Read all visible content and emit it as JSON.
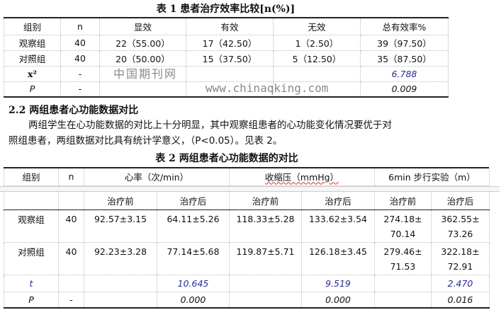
{
  "table1": {
    "title": "表 1 患者治疗效率比较[n(%)]",
    "headers": [
      "组别",
      "n",
      "显效",
      "有效",
      "无效",
      "总有效率%"
    ],
    "rows": [
      [
        "观察组",
        "40",
        "22（55.00）",
        "17（42.50）",
        "1（2.50）",
        "39（97.50）"
      ],
      [
        "对照组",
        "40",
        "20（50.00）",
        "15（37.50）",
        "5（12.50）",
        "35（87.50）"
      ]
    ],
    "chi_label": "x²",
    "chi_n": "-",
    "chi_value": "6.788",
    "p_label": "P",
    "p_n": "-",
    "p_value": "0.009"
  },
  "section": {
    "heading": "2.2 两组患者心功能数据对比",
    "para_line1": "两组学生在心功能数据的对比上十分明显，其中观察组患者的心功能变化情况要优于对",
    "para_line2": "照组患者，两组数据对比具有统计学意义，（P<0.05）。见表 2。"
  },
  "table2": {
    "title": "表 2 两组患者心功能数据的对比",
    "headers": [
      "组别",
      "n",
      "心率（次/min）",
      "收缩压（mmHg）",
      "6min 步行实验（m）"
    ],
    "subheaders": [
      "治疗前",
      "治疗后",
      "治疗前",
      "治疗后",
      "治疗前",
      "治疗后"
    ],
    "rows": [
      {
        "group": "观察组",
        "n": "40",
        "values": [
          "92.57±3.15",
          "64.11±5.26",
          "118.33±5.28",
          "133.62±3.54",
          "274.18±",
          "362.55±"
        ],
        "values2": [
          "",
          "",
          "",
          "",
          "70.14",
          "73.26"
        ]
      },
      {
        "group": "对照组",
        "n": "40",
        "values": [
          "92.23±3.28",
          "77.14±5.68",
          "119.87±5.71",
          "126.18±3.45",
          "279.46±",
          "322.18±"
        ],
        "values2": [
          "",
          "",
          "",
          "",
          "71.53",
          "72.91"
        ]
      }
    ],
    "t_label": "t",
    "t_values": [
      "10.645",
      "9.519",
      "2.470"
    ],
    "p_label": "P",
    "p_n": "-",
    "p_values": [
      "0.000",
      "0.000",
      "0.016"
    ]
  },
  "watermark": {
    "cn": "中国期刊网",
    "url": "www.chinaqking.com"
  }
}
